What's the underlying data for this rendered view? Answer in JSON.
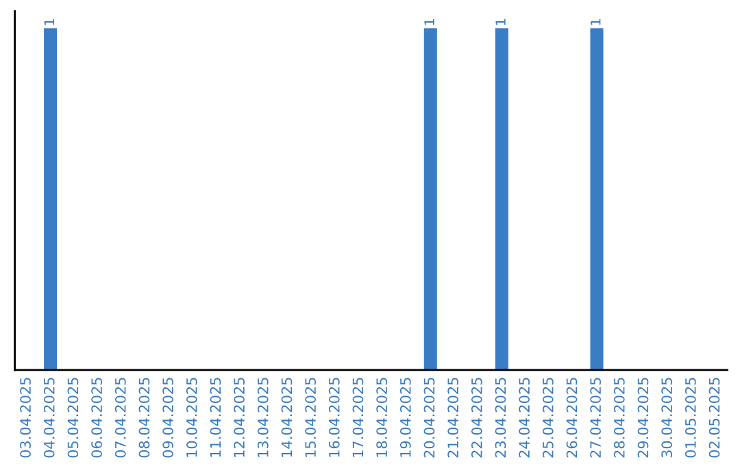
{
  "chart_data": {
    "type": "bar",
    "categories": [
      "03.04.2025",
      "04.04.2025",
      "05.04.2025",
      "06.04.2025",
      "07.04.2025",
      "08.04.2025",
      "09.04.2025",
      "10.04.2025",
      "11.04.2025",
      "12.04.2025",
      "13.04.2025",
      "14.04.2025",
      "15.04.2025",
      "16.04.2025",
      "17.04.2025",
      "18.04.2025",
      "19.04.2025",
      "20.04.2025",
      "21.04.2025",
      "22.04.2025",
      "23.04.2025",
      "24.04.2025",
      "25.04.2025",
      "26.04.2025",
      "27.04.2025",
      "28.04.2025",
      "29.04.2025",
      "30.04.2025",
      "01.05.2025",
      "02.05.2025"
    ],
    "values": [
      0,
      1,
      0,
      0,
      0,
      0,
      0,
      0,
      0,
      0,
      0,
      0,
      0,
      0,
      0,
      0,
      0,
      1,
      0,
      0,
      1,
      0,
      0,
      0,
      1,
      0,
      0,
      0,
      0,
      0
    ],
    "value_labels": [
      null,
      "1",
      null,
      null,
      null,
      null,
      null,
      null,
      null,
      null,
      null,
      null,
      null,
      null,
      null,
      null,
      null,
      "1",
      null,
      null,
      "1",
      null,
      null,
      null,
      "1",
      null,
      null,
      null,
      null,
      null
    ],
    "color": "#3b7dc4",
    "ylim": [
      0,
      1.05
    ],
    "tick_labels": "x",
    "grid": false,
    "legend": false
  }
}
